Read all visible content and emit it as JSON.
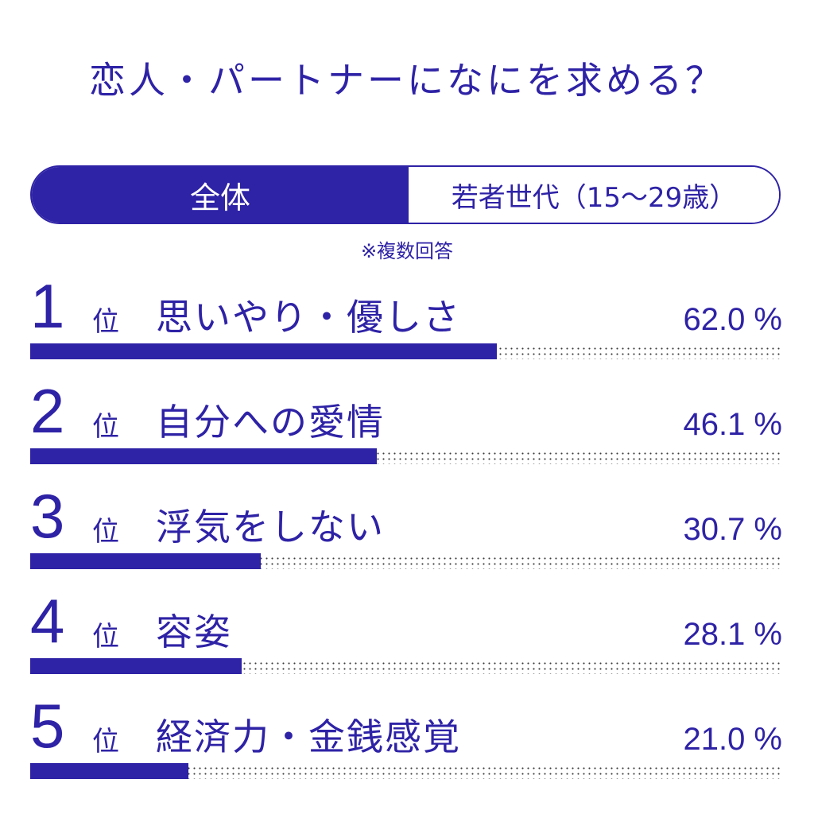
{
  "title": "恋人・パートナーになにを求める？",
  "tabs": [
    {
      "label": "全体",
      "active": true
    },
    {
      "label": "若者世代（15〜29歳）",
      "active": false
    }
  ],
  "note": "※複数回答",
  "colors": {
    "accent": "#2e22a6",
    "track_dots": "#3a3a3a",
    "background": "#ffffff"
  },
  "chart_data": {
    "type": "bar",
    "orientation": "horizontal",
    "rank_suffix": "位",
    "value_unit": "%",
    "xlim": [
      0,
      100
    ],
    "categories": [
      "思いやり・優しさ",
      "自分への愛情",
      "浮気をしない",
      "容姿",
      "経済力・金銭感覚"
    ],
    "ranks": [
      "1",
      "2",
      "3",
      "4",
      "5"
    ],
    "values": [
      62.0,
      46.1,
      30.7,
      28.1,
      21.0
    ],
    "value_labels": [
      "62.0 %",
      "46.1 %",
      "30.7 %",
      "28.1 %",
      "21.0 %"
    ]
  }
}
